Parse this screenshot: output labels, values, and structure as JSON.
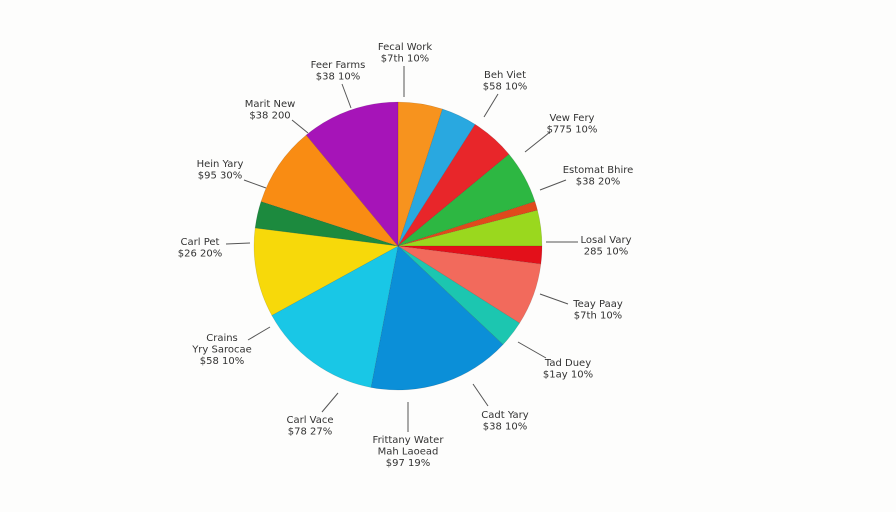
{
  "chart_data": {
    "type": "pie",
    "values": [
      5,
      4,
      5,
      6,
      1,
      4,
      2,
      7,
      3,
      16,
      14,
      10,
      3,
      9,
      11
    ],
    "colors": [
      "#f7931e",
      "#29a8e0",
      "#e8262a",
      "#2db742",
      "#e04a1c",
      "#9ad81e",
      "#e3101a",
      "#f26a5c",
      "#1cc6b0",
      "#0b8fd8",
      "#19c7e6",
      "#f7d90a",
      "#1c8a3e",
      "#f98c13",
      "#a614b8"
    ],
    "annotations": [
      {
        "lines": [
          "Fecal Work",
          "$7th 10%"
        ]
      },
      {
        "lines": [
          "Feer Farms",
          "$38 10%"
        ]
      },
      {
        "lines": [
          "Marit New",
          "$38 200"
        ]
      },
      {
        "lines": [
          "Hein Yary",
          "$95 30%"
        ]
      },
      {
        "lines": [
          "Carl Pet",
          "$26 20%"
        ]
      },
      {
        "lines": [
          "Crains",
          "Yry Sarocae",
          "$58 10%"
        ]
      },
      {
        "lines": [
          "Carl Vace",
          "$78 27%"
        ]
      },
      {
        "lines": [
          "Frittany Water",
          "Mah Laoead",
          "$97 19%"
        ]
      },
      {
        "lines": [
          "Cadt Yary",
          "$38 10%"
        ]
      },
      {
        "lines": [
          "Tad Duey",
          "$1ay 10%"
        ]
      },
      {
        "lines": [
          "Teay Paay",
          "$7th 10%"
        ]
      },
      {
        "lines": [
          "Losal Vary",
          "285 10%"
        ]
      },
      {
        "lines": [
          "Estomat Bhire",
          "$38 20%"
        ]
      },
      {
        "lines": [
          "Vew Fery",
          "$775 10%"
        ]
      },
      {
        "lines": [
          "Beh Viet",
          "$58 10%"
        ]
      }
    ]
  }
}
